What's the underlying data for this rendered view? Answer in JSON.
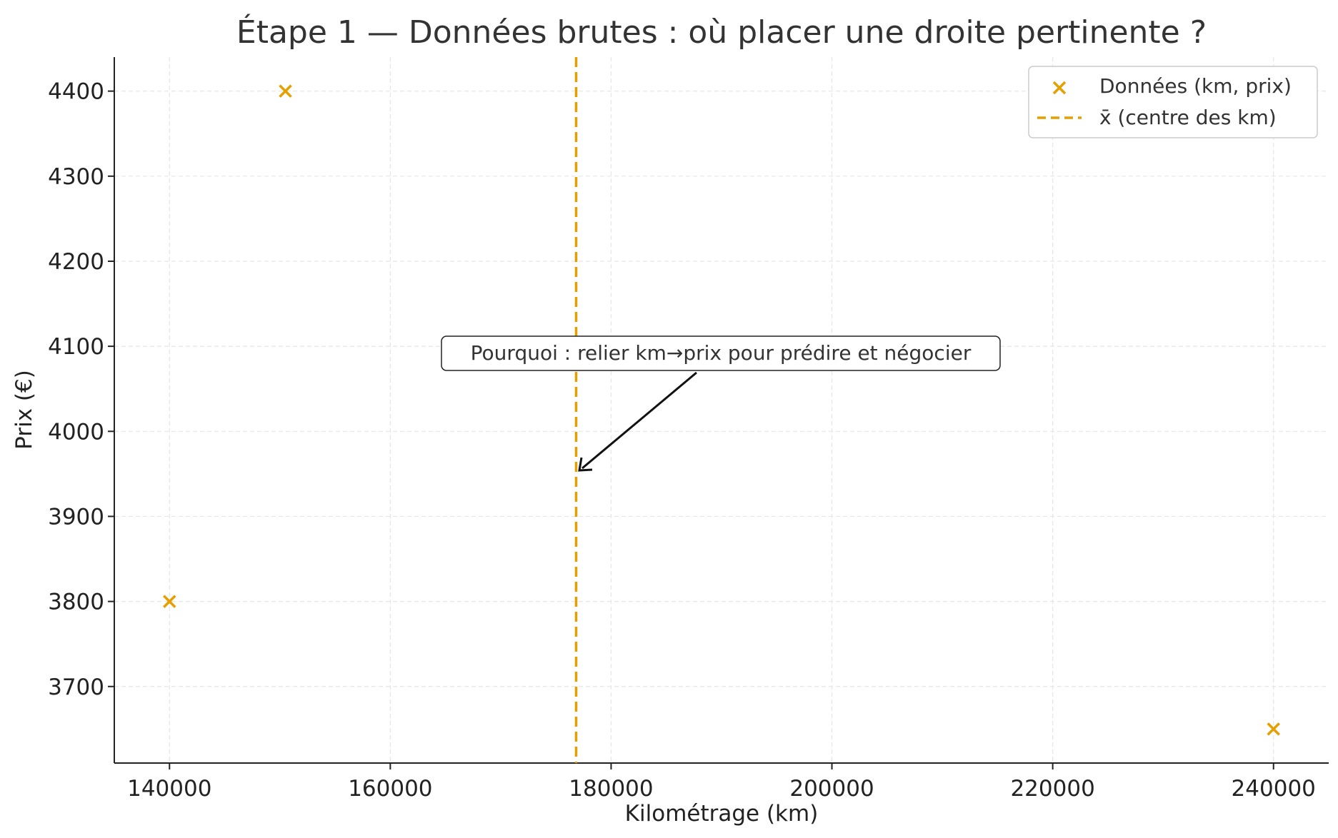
{
  "chart_data": {
    "type": "scatter",
    "title": "Étape 1 — Données brutes : où placer une droite pertinente ?",
    "xlabel": "Kilométrage (km)",
    "ylabel": "Prix (€)",
    "xlim": [
      135000,
      245000
    ],
    "ylim": [
      3610,
      4440
    ],
    "xticks": [
      140000,
      160000,
      180000,
      200000,
      220000,
      240000
    ],
    "yticks": [
      3700,
      3800,
      3900,
      4000,
      4100,
      4200,
      4300,
      4400
    ],
    "grid": true,
    "legend_position": "top-right",
    "series": [
      {
        "name": "Données (km, prix)",
        "marker": "x",
        "color": "#E69F00",
        "points": [
          {
            "x": 140000,
            "y": 3800
          },
          {
            "x": 150500,
            "y": 4400
          },
          {
            "x": 240000,
            "y": 3650
          }
        ]
      }
    ],
    "reference_lines": [
      {
        "name": "x̄ (centre des km)",
        "orientation": "vertical",
        "x": 176833,
        "style": "dashed",
        "color": "#E69F00"
      }
    ],
    "annotations": [
      {
        "text": "Pourquoi : relier km→prix pour prédire et négocier",
        "text_at": {
          "x": 190000,
          "y": 4093
        },
        "arrow_to": {
          "x": 177000,
          "y": 3953
        }
      }
    ]
  }
}
